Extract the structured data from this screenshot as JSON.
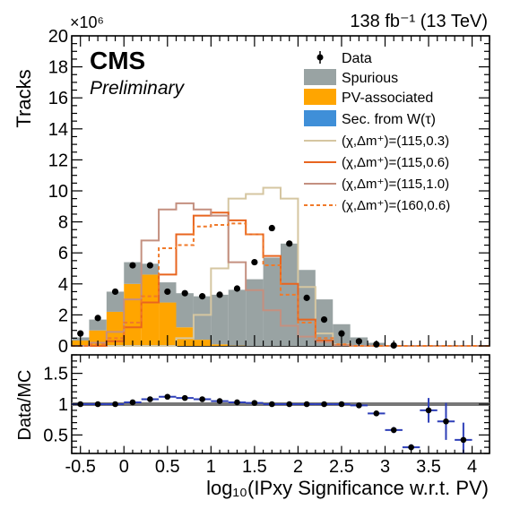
{
  "chart_data": {
    "type": "bar",
    "lumi_label": "138 fb⁻¹ (13 TeV)",
    "experiment": "CMS",
    "status": "Preliminary",
    "xlabel": "log₁₀(IPxy Significance w.r.t. PV)",
    "xlim": [
      -0.6,
      4.2
    ],
    "x_ticks": [
      "-0.5",
      "0",
      "0.5",
      "1",
      "1.5",
      "2",
      "2.5",
      "3",
      "3.5",
      "4"
    ],
    "bin_edges": [
      -0.6,
      -0.4,
      -0.2,
      0.0,
      0.2,
      0.4,
      0.6,
      0.8,
      1.0,
      1.2,
      1.4,
      1.6,
      1.8,
      2.0,
      2.2,
      2.4,
      2.6,
      2.8,
      3.0,
      3.2,
      3.4,
      3.6,
      3.8,
      4.0,
      4.2
    ],
    "top": {
      "ylabel": "Tracks",
      "y_multiplier": "×10⁶",
      "ylim": [
        0,
        20
      ],
      "y_ticks": [
        "0",
        "2",
        "4",
        "6",
        "8",
        "10",
        "12",
        "14",
        "16",
        "18",
        "20"
      ],
      "stack": [
        {
          "name": "PV-associated",
          "color": "#FFA500",
          "values": [
            0.35,
            1.0,
            2.2,
            4.0,
            4.6,
            2.8,
            1.2,
            0.4,
            0.1,
            0.02,
            0,
            0,
            0,
            0,
            0,
            0,
            0,
            0,
            0,
            0,
            0,
            0,
            0,
            0
          ]
        },
        {
          "name": "Spurious",
          "color": "#99A3A3",
          "values": [
            0.2,
            0.7,
            1.3,
            1.4,
            0.7,
            1.3,
            2.2,
            2.8,
            3.2,
            3.6,
            4.3,
            5.7,
            6.6,
            4.9,
            3.0,
            1.4,
            0.55,
            0.2,
            0.05,
            0.02,
            0.01,
            0,
            0,
            0
          ]
        },
        {
          "name": "Sec. from W(τ)",
          "color": "#3F8FD8",
          "values": [
            0,
            0,
            0,
            0,
            0,
            0,
            0,
            0,
            0,
            0,
            0,
            0,
            0,
            0,
            0,
            0,
            0,
            0,
            0,
            0,
            0,
            0,
            0,
            0
          ]
        }
      ],
      "data": {
        "name": "Data",
        "x": [
          -0.5,
          -0.3,
          -0.1,
          0.1,
          0.3,
          0.5,
          0.7,
          0.9,
          1.1,
          1.3,
          1.5,
          1.7,
          1.9,
          2.1,
          2.3,
          2.5,
          2.7,
          2.9,
          3.1
        ],
        "y": [
          0.8,
          1.8,
          3.5,
          5.2,
          5.2,
          3.5,
          3.4,
          3.2,
          3.3,
          3.7,
          5.4,
          7.6,
          6.6,
          3.1,
          1.7,
          0.8,
          0.3,
          0.1,
          0.03
        ]
      },
      "signals": [
        {
          "name": "(χ,Δm⁺)=(115,0.3)",
          "color": "#D5C6A1",
          "dash": "",
          "values": [
            0,
            0,
            0,
            0,
            0,
            0,
            0.5,
            2.0,
            5.0,
            9.5,
            9.8,
            10.2,
            9.5,
            3.8,
            0.8,
            0.1,
            0,
            0,
            0,
            0,
            0,
            0,
            0,
            0
          ]
        },
        {
          "name": "(χ,Δm⁺)=(115,0.6)",
          "color": "#E8651F",
          "dash": "",
          "values": [
            0,
            0,
            0.3,
            1.2,
            2.8,
            4.6,
            7.2,
            8.4,
            8.6,
            8.1,
            7.2,
            5.8,
            4.0,
            1.7,
            0.35,
            0.05,
            0,
            0,
            0,
            0,
            0,
            0,
            0,
            0
          ]
        },
        {
          "name": "(χ,Δm⁺)=(115,1.0)",
          "color": "#C49080",
          "dash": "",
          "values": [
            0,
            0.2,
            0.9,
            3.0,
            6.8,
            8.8,
            9.2,
            8.8,
            8.4,
            5.4,
            3.6,
            2.3,
            1.3,
            0.6,
            0.25,
            0.05,
            0,
            0,
            0,
            0,
            0,
            0,
            0,
            0
          ]
        },
        {
          "name": "(χ,Δm⁺)=(160,0.6)",
          "color": "#F07A2A",
          "dash": "4,3",
          "values": [
            0,
            0.1,
            0.5,
            1.5,
            3.2,
            6.3,
            6.5,
            7.7,
            7.8,
            7.9,
            7.2,
            5.2,
            3.3,
            1.5,
            0.5,
            0.1,
            0,
            0,
            0,
            0,
            0,
            0,
            0,
            0
          ]
        }
      ]
    },
    "ratio": {
      "ylabel": "Data/MC",
      "ylim": [
        0.2,
        1.8
      ],
      "y_ticks": [
        "0.5",
        "1",
        "1.5"
      ],
      "reference": 1.0,
      "x": [
        -0.5,
        -0.3,
        -0.1,
        0.1,
        0.3,
        0.5,
        0.7,
        0.9,
        1.1,
        1.3,
        1.5,
        1.7,
        1.9,
        2.1,
        2.3,
        2.5,
        2.7,
        2.9,
        3.1,
        3.3,
        3.5,
        3.7,
        3.9
      ],
      "y": [
        1.0,
        1.0,
        1.0,
        1.03,
        1.08,
        1.12,
        1.1,
        1.08,
        1.05,
        1.03,
        1.02,
        1.0,
        1.0,
        1.0,
        1.0,
        1.0,
        0.98,
        0.85,
        0.58,
        0.3,
        0.9,
        0.72,
        0.42
      ],
      "err": [
        0.02,
        0.02,
        0.02,
        0.02,
        0.02,
        0.02,
        0.02,
        0.02,
        0.02,
        0.02,
        0.02,
        0.02,
        0.02,
        0.02,
        0.02,
        0.02,
        0.03,
        0.03,
        0.05,
        0.05,
        0.2,
        0.3,
        0.28
      ]
    },
    "legend_position": "top-right"
  }
}
